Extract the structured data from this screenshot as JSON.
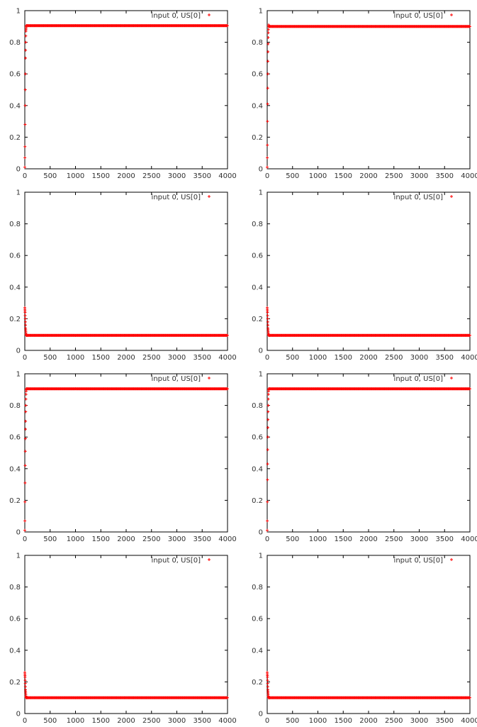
{
  "chart_data": [
    {
      "type": "scatter",
      "xlim": [
        0,
        4000
      ],
      "ylim": [
        0,
        1
      ],
      "xticks": [
        0,
        500,
        1000,
        1500,
        2000,
        2500,
        3000,
        3500,
        4000
      ],
      "yticks": [
        0,
        0.2,
        0.4,
        0.6,
        0.8,
        1
      ],
      "xtick_labels": [
        "0",
        "500",
        "1000",
        "1500",
        "2000",
        "2500",
        "3000",
        "3500",
        "4000"
      ],
      "ytick_labels": [
        "0",
        "0.2",
        "0.4",
        "0.6",
        "0.8",
        "1"
      ],
      "legend_position": "top-right",
      "series": [
        {
          "name": "input 0, US[0]",
          "color": "#ff0000",
          "marker": "plus",
          "x": [
            0,
            2,
            4,
            6,
            8,
            10,
            12,
            14,
            16,
            18,
            20,
            22,
            24,
            26,
            28,
            30,
            32,
            40,
            60,
            100,
            200,
            500,
            1000,
            2000,
            3000,
            4000
          ],
          "y": [
            0.01,
            0.07,
            0.14,
            0.28,
            0.4,
            0.5,
            0.6,
            0.7,
            0.75,
            0.8,
            0.84,
            0.87,
            0.88,
            0.89,
            0.9,
            0.905,
            0.905,
            0.905,
            0.905,
            0.905,
            0.905,
            0.905,
            0.905,
            0.905,
            0.905,
            0.905
          ]
        }
      ]
    },
    {
      "type": "scatter",
      "xlim": [
        0,
        4000
      ],
      "ylim": [
        0,
        1
      ],
      "xticks": [
        0,
        500,
        1000,
        1500,
        2000,
        2500,
        3000,
        3500,
        4000
      ],
      "yticks": [
        0,
        0.2,
        0.4,
        0.6,
        0.8,
        1
      ],
      "xtick_labels": [
        "0",
        "500",
        "1000",
        "1500",
        "2000",
        "2500",
        "3000",
        "3500",
        "4000"
      ],
      "ytick_labels": [
        "0",
        "0.2",
        "0.4",
        "0.6",
        "0.8",
        "1"
      ],
      "legend_position": "top-right",
      "series": [
        {
          "name": "input 0, US[0]",
          "color": "#ff0000",
          "marker": "plus",
          "x": [
            0,
            2,
            4,
            6,
            8,
            10,
            12,
            14,
            16,
            18,
            20,
            22,
            24,
            26,
            28,
            30,
            32,
            40,
            60,
            100,
            200,
            500,
            1000,
            2000,
            3000,
            4000
          ],
          "y": [
            0.01,
            0.07,
            0.15,
            0.3,
            0.41,
            0.51,
            0.6,
            0.68,
            0.74,
            0.79,
            0.83,
            0.86,
            0.88,
            0.9,
            0.91,
            0.9,
            0.9,
            0.9,
            0.9,
            0.9,
            0.9,
            0.9,
            0.9,
            0.9,
            0.9,
            0.9
          ]
        }
      ]
    },
    {
      "type": "scatter",
      "xlim": [
        0,
        4000
      ],
      "ylim": [
        0,
        1
      ],
      "xticks": [
        0,
        500,
        1000,
        1500,
        2000,
        2500,
        3000,
        3500,
        4000
      ],
      "yticks": [
        0,
        0.2,
        0.4,
        0.6,
        0.8,
        1
      ],
      "xtick_labels": [
        "0",
        "500",
        "1000",
        "1500",
        "2000",
        "2500",
        "3000",
        "3500",
        "4000"
      ],
      "ytick_labels": [
        "0",
        "0.2",
        "0.4",
        "0.6",
        "0.8",
        "1"
      ],
      "legend_position": "top-right",
      "series": [
        {
          "name": "input 0, US[0]",
          "color": "#ff0000",
          "marker": "plus",
          "x": [
            0,
            2,
            4,
            6,
            8,
            10,
            12,
            14,
            16,
            18,
            20,
            22,
            24,
            26,
            28,
            30,
            32,
            34,
            36,
            40,
            60,
            100,
            200,
            500,
            1000,
            2000,
            3000,
            4000
          ],
          "y": [
            0.27,
            0.26,
            0.25,
            0.24,
            0.22,
            0.2,
            0.18,
            0.16,
            0.14,
            0.13,
            0.12,
            0.11,
            0.1,
            0.1,
            0.095,
            0.095,
            0.095,
            0.095,
            0.095,
            0.095,
            0.095,
            0.095,
            0.095,
            0.095,
            0.095,
            0.095,
            0.095,
            0.095
          ]
        }
      ]
    },
    {
      "type": "scatter",
      "xlim": [
        0,
        4000
      ],
      "ylim": [
        0,
        1
      ],
      "xticks": [
        0,
        500,
        1000,
        1500,
        2000,
        2500,
        3000,
        3500,
        4000
      ],
      "yticks": [
        0,
        0.2,
        0.4,
        0.6,
        0.8,
        1
      ],
      "xtick_labels": [
        "0",
        "500",
        "1000",
        "1500",
        "2000",
        "2500",
        "3000",
        "3500",
        "4000"
      ],
      "ytick_labels": [
        "0",
        "0.2",
        "0.4",
        "0.6",
        "0.8",
        "1"
      ],
      "legend_position": "top-right",
      "series": [
        {
          "name": "input 0, US[0]",
          "color": "#ff0000",
          "marker": "plus",
          "x": [
            0,
            2,
            4,
            6,
            8,
            10,
            12,
            14,
            16,
            18,
            20,
            22,
            24,
            26,
            28,
            30,
            32,
            34,
            36,
            40,
            60,
            100,
            200,
            500,
            1000,
            2000,
            3000,
            4000
          ],
          "y": [
            0.27,
            0.26,
            0.25,
            0.24,
            0.22,
            0.2,
            0.18,
            0.16,
            0.14,
            0.13,
            0.12,
            0.11,
            0.1,
            0.1,
            0.095,
            0.095,
            0.095,
            0.095,
            0.095,
            0.095,
            0.095,
            0.095,
            0.095,
            0.095,
            0.095,
            0.095,
            0.095,
            0.095
          ]
        }
      ]
    },
    {
      "type": "scatter",
      "xlim": [
        0,
        4000
      ],
      "ylim": [
        0,
        1
      ],
      "xticks": [
        0,
        500,
        1000,
        1500,
        2000,
        2500,
        3000,
        3500,
        4000
      ],
      "yticks": [
        0,
        0.2,
        0.4,
        0.6,
        0.8,
        1
      ],
      "xtick_labels": [
        "0",
        "500",
        "1000",
        "1500",
        "2000",
        "2500",
        "3000",
        "3500",
        "4000"
      ],
      "ytick_labels": [
        "0",
        "0.2",
        "0.4",
        "0.6",
        "0.8",
        "1"
      ],
      "legend_position": "top-right",
      "series": [
        {
          "name": "input 0, US[0]",
          "color": "#ff0000",
          "marker": "plus",
          "x": [
            0,
            2,
            4,
            6,
            8,
            10,
            12,
            14,
            16,
            18,
            20,
            22,
            24,
            26,
            28,
            30,
            32,
            40,
            60,
            100,
            200,
            500,
            1000,
            2000,
            3000,
            4000
          ],
          "y": [
            0.01,
            0.07,
            0.19,
            0.31,
            0.42,
            0.51,
            0.59,
            0.65,
            0.7,
            0.76,
            0.8,
            0.84,
            0.87,
            0.89,
            0.9,
            0.905,
            0.905,
            0.905,
            0.905,
            0.905,
            0.905,
            0.905,
            0.905,
            0.905,
            0.905,
            0.905
          ]
        }
      ]
    },
    {
      "type": "scatter",
      "xlim": [
        0,
        4000
      ],
      "ylim": [
        0,
        1
      ],
      "xticks": [
        0,
        500,
        1000,
        1500,
        2000,
        2500,
        3000,
        3500,
        4000
      ],
      "yticks": [
        0,
        0.2,
        0.4,
        0.6,
        0.8,
        1
      ],
      "xtick_labels": [
        "0",
        "500",
        "1000",
        "1500",
        "2000",
        "2500",
        "3000",
        "3500",
        "4000"
      ],
      "ytick_labels": [
        "0",
        "0.2",
        "0.4",
        "0.6",
        "0.8",
        "1"
      ],
      "legend_position": "top-right",
      "series": [
        {
          "name": "input 0, US[0]",
          "color": "#ff0000",
          "marker": "plus",
          "x": [
            0,
            2,
            4,
            6,
            8,
            10,
            12,
            14,
            16,
            18,
            20,
            22,
            24,
            26,
            28,
            30,
            32,
            40,
            60,
            100,
            200,
            500,
            1000,
            2000,
            3000,
            4000
          ],
          "y": [
            0.01,
            0.07,
            0.19,
            0.33,
            0.43,
            0.52,
            0.6,
            0.66,
            0.71,
            0.76,
            0.8,
            0.84,
            0.87,
            0.89,
            0.9,
            0.905,
            0.905,
            0.905,
            0.905,
            0.905,
            0.905,
            0.905,
            0.905,
            0.905,
            0.905,
            0.905
          ]
        }
      ]
    },
    {
      "type": "scatter",
      "xlim": [
        0,
        4000
      ],
      "ylim": [
        0,
        1
      ],
      "xticks": [
        0,
        500,
        1000,
        1500,
        2000,
        2500,
        3000,
        3500,
        4000
      ],
      "yticks": [
        0,
        0.2,
        0.4,
        0.6,
        0.8,
        1
      ],
      "xtick_labels": [
        "0",
        "500",
        "1000",
        "1500",
        "2000",
        "2500",
        "3000",
        "3500",
        "4000"
      ],
      "ytick_labels": [
        "0",
        "0.2",
        "0.4",
        "0.6",
        "0.8",
        "1"
      ],
      "legend_position": "top-right",
      "series": [
        {
          "name": "input 0, US[0]",
          "color": "#ff0000",
          "marker": "plus",
          "x": [
            0,
            2,
            4,
            6,
            8,
            10,
            12,
            14,
            16,
            18,
            20,
            22,
            24,
            26,
            28,
            30,
            32,
            34,
            36,
            40,
            60,
            100,
            200,
            500,
            1000,
            2000,
            3000,
            4000
          ],
          "y": [
            0.26,
            0.25,
            0.24,
            0.23,
            0.21,
            0.19,
            0.17,
            0.15,
            0.14,
            0.13,
            0.12,
            0.11,
            0.105,
            0.1,
            0.1,
            0.1,
            0.1,
            0.1,
            0.1,
            0.1,
            0.1,
            0.1,
            0.1,
            0.1,
            0.1,
            0.1,
            0.1,
            0.1
          ]
        }
      ]
    },
    {
      "type": "scatter",
      "xlim": [
        0,
        4000
      ],
      "ylim": [
        0,
        1
      ],
      "xticks": [
        0,
        500,
        1000,
        1500,
        2000,
        2500,
        3000,
        3500,
        4000
      ],
      "yticks": [
        0,
        0.2,
        0.4,
        0.6,
        0.8,
        1
      ],
      "xtick_labels": [
        "0",
        "500",
        "1000",
        "1500",
        "2000",
        "2500",
        "3000",
        "3500",
        "4000"
      ],
      "ytick_labels": [
        "0",
        "0.2",
        "0.4",
        "0.6",
        "0.8",
        "1"
      ],
      "legend_position": "top-right",
      "series": [
        {
          "name": "input 0, US[0]",
          "color": "#ff0000",
          "marker": "plus",
          "x": [
            0,
            2,
            4,
            6,
            8,
            10,
            12,
            14,
            16,
            18,
            20,
            22,
            24,
            26,
            28,
            30,
            32,
            34,
            36,
            40,
            60,
            100,
            200,
            500,
            1000,
            2000,
            3000,
            4000
          ],
          "y": [
            0.26,
            0.25,
            0.24,
            0.23,
            0.21,
            0.19,
            0.17,
            0.15,
            0.14,
            0.13,
            0.12,
            0.11,
            0.105,
            0.1,
            0.1,
            0.1,
            0.1,
            0.1,
            0.1,
            0.1,
            0.1,
            0.1,
            0.1,
            0.1,
            0.1,
            0.1,
            0.1,
            0.1
          ]
        }
      ]
    }
  ]
}
